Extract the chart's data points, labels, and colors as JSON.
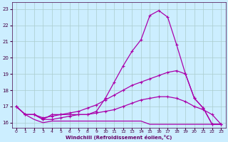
{
  "bg_color": "#cceeff",
  "line_color": "#aa00aa",
  "grid_color": "#aacccc",
  "xlabel": "Windchill (Refroidissement éolien,°C)",
  "xlabel_color": "#660066",
  "tick_color": "#440044",
  "ylim": [
    15.7,
    23.4
  ],
  "xlim": [
    -0.5,
    23.5
  ],
  "yticks": [
    16,
    17,
    18,
    19,
    20,
    21,
    22,
    23
  ],
  "xticks": [
    0,
    1,
    2,
    3,
    4,
    5,
    6,
    7,
    8,
    9,
    10,
    11,
    12,
    13,
    14,
    15,
    16,
    17,
    18,
    19,
    20,
    21,
    22,
    23
  ],
  "line1_x": [
    0,
    1,
    2,
    3,
    4,
    5,
    6,
    7,
    8,
    9,
    10,
    11,
    12,
    13,
    14,
    15,
    16,
    17,
    18,
    19,
    20,
    21,
    22,
    23
  ],
  "line1_y": [
    17.0,
    16.5,
    16.5,
    16.2,
    16.5,
    16.5,
    16.5,
    16.5,
    16.5,
    16.7,
    17.5,
    18.5,
    19.5,
    20.4,
    21.1,
    22.6,
    22.9,
    22.5,
    20.8,
    19.0,
    17.5,
    16.9,
    15.9,
    15.9
  ],
  "line2_x": [
    0,
    1,
    2,
    3,
    4,
    5,
    6,
    7,
    8,
    9,
    10,
    11,
    12,
    13,
    14,
    15,
    16,
    17,
    18,
    19,
    20,
    21,
    22,
    23
  ],
  "line2_y": [
    17.0,
    16.5,
    16.5,
    16.3,
    16.4,
    16.5,
    16.6,
    16.7,
    16.9,
    17.1,
    17.4,
    17.7,
    18.0,
    18.3,
    18.5,
    18.7,
    18.9,
    19.1,
    19.2,
    19.0,
    17.5,
    16.9,
    15.9,
    15.9
  ],
  "line3_x": [
    0,
    1,
    2,
    3,
    4,
    5,
    6,
    7,
    8,
    9,
    10,
    11,
    12,
    13,
    14,
    15,
    16,
    17,
    18,
    19,
    20,
    21,
    22,
    23
  ],
  "line3_y": [
    17.0,
    16.5,
    16.5,
    16.2,
    16.2,
    16.3,
    16.4,
    16.5,
    16.5,
    16.6,
    16.7,
    16.8,
    17.0,
    17.2,
    17.4,
    17.5,
    17.6,
    17.6,
    17.5,
    17.3,
    17.0,
    16.8,
    16.5,
    15.9
  ],
  "line4_x": [
    0,
    1,
    2,
    3,
    4,
    5,
    6,
    7,
    8,
    9,
    10,
    11,
    12,
    13,
    14,
    15,
    16,
    17,
    18,
    19,
    20,
    21,
    22,
    23
  ],
  "line4_y": [
    17.0,
    16.5,
    16.2,
    16.0,
    16.1,
    16.1,
    16.1,
    16.1,
    16.1,
    16.1,
    16.1,
    16.1,
    16.1,
    16.1,
    16.1,
    15.9,
    15.9,
    15.9,
    15.9,
    15.9,
    15.9,
    15.9,
    15.9,
    15.9
  ]
}
